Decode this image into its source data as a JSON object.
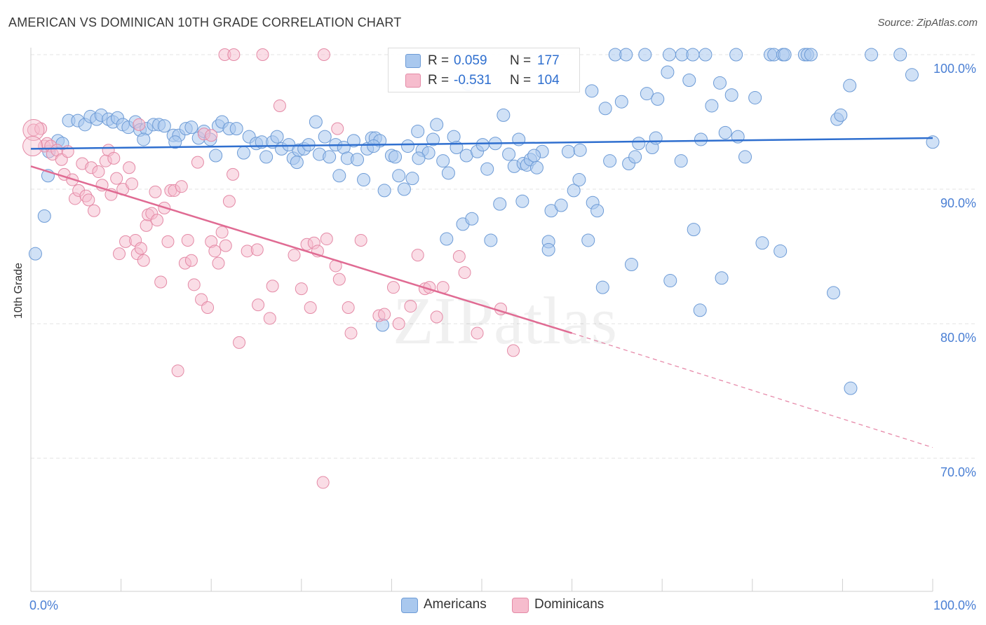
{
  "title": "AMERICAN VS DOMINICAN 10TH GRADE CORRELATION CHART",
  "source": "Source: ZipAtlas.com",
  "watermark": "ZIPatlas",
  "legend": {
    "rows": [
      {
        "r_label": "R =",
        "r_value": "0.059",
        "n_label": "N =",
        "n_value": "177"
      },
      {
        "r_label": "R =",
        "r_value": "-0.531",
        "n_label": "N =",
        "n_value": "104"
      }
    ]
  },
  "bottom_legend": [
    "Americans",
    "Dominicans"
  ],
  "colors": {
    "american_fill": "#a9c8ee",
    "american_stroke": "#6d9bd6",
    "american_line": "#2f6fcf",
    "dominican_fill": "#f6bccd",
    "dominican_stroke": "#e48aa6",
    "dominican_line": "#e06b93",
    "axis_text": "#4a7fd4",
    "grid": "#e3e3e3"
  },
  "chart_data": {
    "type": "scatter",
    "title": "AMERICAN VS DOMINICAN 10TH GRADE CORRELATION CHART",
    "xlabel": "",
    "ylabel": "10th Grade",
    "xlim": [
      0,
      100
    ],
    "ylim": [
      60,
      101.5
    ],
    "x_tick_labels": [
      "0.0%",
      "100.0%"
    ],
    "y_ticks": [
      70,
      80,
      90,
      100
    ],
    "y_tick_labels": [
      "70.0%",
      "80.0%",
      "90.0%",
      "100.0%"
    ],
    "grid": true,
    "legend_position": "top-center",
    "series": [
      {
        "name": "Americans",
        "R": 0.059,
        "N": 177,
        "trend": {
          "x": [
            0,
            100
          ],
          "y": [
            93.0,
            93.8
          ]
        },
        "points": [
          [
            0.5,
            85.2
          ],
          [
            1.5,
            88.0
          ],
          [
            1.9,
            91.0
          ],
          [
            2.0,
            92.8
          ],
          [
            3.0,
            93.6
          ],
          [
            3.5,
            93.4
          ],
          [
            4.2,
            95.1
          ],
          [
            5.2,
            95.1
          ],
          [
            6.0,
            94.8
          ],
          [
            6.6,
            95.4
          ],
          [
            7.3,
            95.2
          ],
          [
            7.8,
            95.5
          ],
          [
            8.6,
            95.2
          ],
          [
            9.1,
            95.0
          ],
          [
            9.6,
            95.3
          ],
          [
            10.2,
            94.8
          ],
          [
            10.8,
            94.6
          ],
          [
            11.6,
            95.0
          ],
          [
            12.1,
            94.4
          ],
          [
            12.8,
            94.5
          ],
          [
            13.6,
            94.8
          ],
          [
            14.2,
            94.8
          ],
          [
            14.8,
            94.7
          ],
          [
            15.8,
            94.0
          ],
          [
            16.4,
            94.0
          ],
          [
            17.2,
            94.5
          ],
          [
            17.8,
            94.6
          ],
          [
            18.6,
            93.8
          ],
          [
            19.2,
            94.3
          ],
          [
            19.9,
            93.7
          ],
          [
            20.8,
            94.7
          ],
          [
            21.2,
            95.0
          ],
          [
            22.0,
            94.5
          ],
          [
            22.8,
            94.5
          ],
          [
            23.6,
            92.7
          ],
          [
            24.2,
            93.9
          ],
          [
            25.0,
            93.4
          ],
          [
            25.6,
            93.5
          ],
          [
            26.1,
            92.4
          ],
          [
            26.8,
            93.5
          ],
          [
            27.3,
            93.9
          ],
          [
            27.8,
            93.0
          ],
          [
            28.6,
            93.3
          ],
          [
            29.1,
            92.3
          ],
          [
            29.7,
            92.9
          ],
          [
            30.3,
            93.0
          ],
          [
            30.8,
            93.3
          ],
          [
            31.6,
            95.0
          ],
          [
            32.0,
            92.6
          ],
          [
            32.6,
            93.9
          ],
          [
            33.1,
            92.4
          ],
          [
            33.8,
            93.3
          ],
          [
            34.2,
            91.0
          ],
          [
            34.7,
            93.1
          ],
          [
            35.1,
            92.3
          ],
          [
            35.8,
            93.6
          ],
          [
            36.2,
            92.2
          ],
          [
            36.9,
            90.7
          ],
          [
            37.3,
            93.0
          ],
          [
            37.8,
            93.8
          ],
          [
            38.2,
            93.8
          ],
          [
            38.7,
            93.6
          ],
          [
            39.2,
            89.9
          ],
          [
            40.0,
            92.5
          ],
          [
            40.4,
            92.4
          ],
          [
            40.8,
            91.0
          ],
          [
            41.4,
            90.0
          ],
          [
            41.8,
            93.2
          ],
          [
            42.3,
            90.8
          ],
          [
            42.9,
            94.3
          ],
          [
            43.4,
            92.9
          ],
          [
            44.1,
            92.7
          ],
          [
            44.6,
            93.7
          ],
          [
            45.0,
            94.8
          ],
          [
            45.7,
            92.1
          ],
          [
            46.3,
            91.2
          ],
          [
            46.9,
            93.9
          ],
          [
            47.2,
            93.1
          ],
          [
            47.9,
            87.4
          ],
          [
            48.3,
            92.5
          ],
          [
            48.9,
            87.8
          ],
          [
            49.5,
            92.8
          ],
          [
            50.1,
            93.3
          ],
          [
            50.6,
            91.5
          ],
          [
            51.0,
            86.2
          ],
          [
            52.0,
            88.9
          ],
          [
            52.4,
            95.5
          ],
          [
            53.0,
            92.6
          ],
          [
            53.6,
            91.7
          ],
          [
            54.1,
            93.7
          ],
          [
            54.6,
            91.9
          ],
          [
            55.0,
            91.8
          ],
          [
            55.4,
            92.2
          ],
          [
            56.1,
            91.6
          ],
          [
            56.7,
            92.8
          ],
          [
            57.4,
            86.1
          ],
          [
            57.7,
            88.4
          ],
          [
            58.8,
            88.8
          ],
          [
            59.6,
            92.8
          ],
          [
            60.2,
            89.9
          ],
          [
            60.8,
            90.7
          ],
          [
            61.8,
            86.2
          ],
          [
            62.2,
            97.3
          ],
          [
            62.3,
            89.0
          ],
          [
            62.8,
            88.4
          ],
          [
            63.7,
            96.0
          ],
          [
            64.2,
            92.1
          ],
          [
            64.8,
            100.0
          ],
          [
            65.5,
            96.5
          ],
          [
            66.0,
            100.0
          ],
          [
            66.3,
            91.9
          ],
          [
            67.4,
            93.4
          ],
          [
            68.1,
            100.0
          ],
          [
            68.3,
            97.1
          ],
          [
            68.9,
            93.1
          ],
          [
            69.3,
            93.8
          ],
          [
            69.5,
            96.7
          ],
          [
            70.6,
            98.7
          ],
          [
            70.8,
            100.0
          ],
          [
            72.1,
            92.1
          ],
          [
            72.2,
            100.0
          ],
          [
            73.0,
            98.1
          ],
          [
            73.4,
            100.0
          ],
          [
            74.3,
            93.7
          ],
          [
            74.8,
            100.0
          ],
          [
            75.5,
            96.2
          ],
          [
            76.4,
            97.9
          ],
          [
            77.0,
            94.2
          ],
          [
            77.7,
            97.0
          ],
          [
            78.2,
            100.0
          ],
          [
            78.4,
            93.9
          ],
          [
            79.2,
            92.4
          ],
          [
            80.3,
            96.8
          ],
          [
            82.0,
            100.0
          ],
          [
            82.4,
            100.0
          ],
          [
            83.4,
            100.0
          ],
          [
            83.6,
            100.0
          ],
          [
            85.8,
            100.0
          ],
          [
            86.1,
            100.0
          ],
          [
            86.5,
            100.0
          ],
          [
            89.4,
            95.2
          ],
          [
            89.8,
            95.5
          ],
          [
            90.8,
            97.7
          ],
          [
            93.2,
            100.0
          ],
          [
            96.4,
            100.0
          ],
          [
            97.7,
            98.5
          ],
          [
            100.0,
            93.5
          ],
          [
            46.1,
            86.3
          ],
          [
            48.5,
            97.8
          ],
          [
            54.5,
            89.1
          ],
          [
            57.4,
            85.5
          ],
          [
            63.4,
            82.7
          ],
          [
            66.6,
            84.4
          ],
          [
            70.9,
            83.2
          ],
          [
            73.5,
            87.0
          ],
          [
            74.2,
            81.0
          ],
          [
            76.6,
            83.4
          ],
          [
            81.1,
            86.0
          ],
          [
            83.1,
            85.4
          ],
          [
            89.0,
            82.3
          ],
          [
            90.9,
            75.2
          ],
          [
            39.0,
            79.9
          ],
          [
            12.5,
            93.7
          ],
          [
            16.0,
            93.5
          ],
          [
            20.5,
            92.5
          ],
          [
            29.5,
            92.0
          ],
          [
            38.0,
            93.2
          ],
          [
            43.0,
            92.3
          ],
          [
            51.5,
            93.4
          ],
          [
            55.8,
            92.5
          ],
          [
            60.9,
            92.9
          ],
          [
            67.0,
            92.4
          ]
        ]
      },
      {
        "name": "Dominicans",
        "R": -0.531,
        "N": 104,
        "trend": {
          "x": [
            0,
            60
          ],
          "y": [
            91.7,
            79.3
          ]
        },
        "trend_dashed": {
          "x": [
            60,
            100
          ],
          "y": [
            79.3,
            70.8
          ]
        },
        "points": [
          [
            0.3,
            94.4
          ],
          [
            1.1,
            94.5
          ],
          [
            1.5,
            93.2
          ],
          [
            1.8,
            93.4
          ],
          [
            2.2,
            93.2
          ],
          [
            2.4,
            92.6
          ],
          [
            2.9,
            92.9
          ],
          [
            3.4,
            92.2
          ],
          [
            3.7,
            91.1
          ],
          [
            4.1,
            92.8
          ],
          [
            4.6,
            90.7
          ],
          [
            4.9,
            89.3
          ],
          [
            5.3,
            89.9
          ],
          [
            5.7,
            91.9
          ],
          [
            6.1,
            89.5
          ],
          [
            6.4,
            89.2
          ],
          [
            6.7,
            91.6
          ],
          [
            7.0,
            88.4
          ],
          [
            7.5,
            91.3
          ],
          [
            7.9,
            90.3
          ],
          [
            8.3,
            92.1
          ],
          [
            8.6,
            92.9
          ],
          [
            8.9,
            89.6
          ],
          [
            9.2,
            92.3
          ],
          [
            9.5,
            90.8
          ],
          [
            9.8,
            85.2
          ],
          [
            10.2,
            90.0
          ],
          [
            10.5,
            86.1
          ],
          [
            10.9,
            91.6
          ],
          [
            11.2,
            90.4
          ],
          [
            11.6,
            86.2
          ],
          [
            11.8,
            85.2
          ],
          [
            12.2,
            85.6
          ],
          [
            12.5,
            84.7
          ],
          [
            12.8,
            87.3
          ],
          [
            13.0,
            88.1
          ],
          [
            13.4,
            88.2
          ],
          [
            13.8,
            89.8
          ],
          [
            14.0,
            87.7
          ],
          [
            14.4,
            83.1
          ],
          [
            14.8,
            88.6
          ],
          [
            15.2,
            86.1
          ],
          [
            15.5,
            89.9
          ],
          [
            15.9,
            89.9
          ],
          [
            16.3,
            76.5
          ],
          [
            16.7,
            90.2
          ],
          [
            17.1,
            84.5
          ],
          [
            17.4,
            86.2
          ],
          [
            17.8,
            84.7
          ],
          [
            18.1,
            82.9
          ],
          [
            18.5,
            92.0
          ],
          [
            18.9,
            81.8
          ],
          [
            19.2,
            94.1
          ],
          [
            19.6,
            81.2
          ],
          [
            20.0,
            86.1
          ],
          [
            20.4,
            85.4
          ],
          [
            20.8,
            84.5
          ],
          [
            21.2,
            86.8
          ],
          [
            21.6,
            85.8
          ],
          [
            22.0,
            89.1
          ],
          [
            22.4,
            91.1
          ],
          [
            23.1,
            78.6
          ],
          [
            24.0,
            85.4
          ],
          [
            25.1,
            85.5
          ],
          [
            25.2,
            81.4
          ],
          [
            26.5,
            80.4
          ],
          [
            26.8,
            82.8
          ],
          [
            27.6,
            96.2
          ],
          [
            29.2,
            85.1
          ],
          [
            30.0,
            82.6
          ],
          [
            30.6,
            85.9
          ],
          [
            31.0,
            81.2
          ],
          [
            31.4,
            86.0
          ],
          [
            31.8,
            85.4
          ],
          [
            32.4,
            68.2
          ],
          [
            32.8,
            86.3
          ],
          [
            33.8,
            84.3
          ],
          [
            34.2,
            83.3
          ],
          [
            35.2,
            81.2
          ],
          [
            35.5,
            79.3
          ],
          [
            36.6,
            86.2
          ],
          [
            38.6,
            80.6
          ],
          [
            39.2,
            80.7
          ],
          [
            40.2,
            82.7
          ],
          [
            40.8,
            80.0
          ],
          [
            42.1,
            81.3
          ],
          [
            42.9,
            85.1
          ],
          [
            43.7,
            82.6
          ],
          [
            44.2,
            82.7
          ],
          [
            45.0,
            80.5
          ],
          [
            45.7,
            82.7
          ],
          [
            47.5,
            85.0
          ],
          [
            48.1,
            83.8
          ],
          [
            49.5,
            79.3
          ],
          [
            52.1,
            81.1
          ],
          [
            53.5,
            78.0
          ],
          [
            21.5,
            100.0
          ],
          [
            22.5,
            100.0
          ],
          [
            25.7,
            100.0
          ],
          [
            32.5,
            100.0
          ],
          [
            34.0,
            94.5
          ],
          [
            20.0,
            94.0
          ],
          [
            12.0,
            94.8
          ]
        ]
      }
    ]
  }
}
